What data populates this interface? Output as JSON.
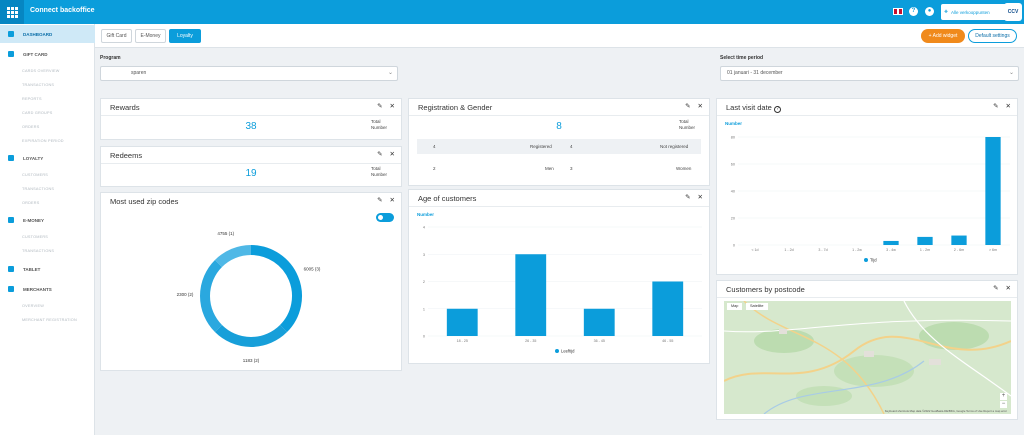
{
  "topbar": {
    "title": "Connect backoffice",
    "store_select": "Alle verkooppunten",
    "logo": "CCV",
    "icons": [
      "apps-icon",
      "uk-flag-icon",
      "help-icon",
      "user-icon",
      "pencil-icon"
    ]
  },
  "sidebar": {
    "items": [
      {
        "label": "Dashboard",
        "icon": "dashboard-icon",
        "active": true
      },
      {
        "label": "Gift card",
        "icon": "gift-card-icon"
      },
      {
        "label": "Cards overview"
      },
      {
        "label": "Transactions"
      },
      {
        "label": "Reports"
      },
      {
        "label": "Card groups"
      },
      {
        "label": "Orders"
      },
      {
        "label": "Expiration period"
      },
      {
        "label": "Loyalty",
        "icon": "loyalty-icon"
      },
      {
        "label": "Customers"
      },
      {
        "label": "Transactions"
      },
      {
        "label": "Orders"
      },
      {
        "label": "E-Money",
        "icon": "emoney-icon"
      },
      {
        "label": "Customers"
      },
      {
        "label": "Transactions"
      },
      {
        "label": "Tablet",
        "icon": "tablet-icon"
      },
      {
        "label": "Merchants",
        "icon": "merchants-icon"
      },
      {
        "label": "Overview"
      },
      {
        "label": "Merchant registration"
      }
    ]
  },
  "tabs": [
    "Gift Card",
    "E-Money",
    "Loyalty"
  ],
  "active_tab": "Loyalty",
  "buttons": {
    "add_widget": "+ Add widget",
    "default_settings": "Default settings"
  },
  "filters": {
    "program_label": "Program",
    "program_value": "sparen",
    "period_label": "Select time period",
    "period_value": "01 januari - 31 december"
  },
  "widgets": {
    "rewards": {
      "title": "Rewards",
      "value": "38",
      "total_label": "Total",
      "number_label": "Number"
    },
    "redeems": {
      "title": "Redeems",
      "value": "19",
      "total_label": "Total",
      "number_label": "Number"
    },
    "registration": {
      "title": "Registration & Gender",
      "value": "8",
      "total_label": "Total",
      "number_label": "Number",
      "registered_count": "4",
      "registered_label": "Registered",
      "not_registered_count": "4",
      "not_registered_label": "Not registered",
      "men_count": "2",
      "men_label": "Men",
      "women_count": "3",
      "women_label": "Women"
    },
    "zip_codes": {
      "title": "Most used zip codes"
    },
    "age": {
      "title": "Age of customers",
      "ylabel": "Number"
    },
    "last_visit": {
      "title": "Last visit date",
      "ylabel": "Number"
    },
    "postcode": {
      "title": "Customers by postcode",
      "map_tab": "Map",
      "sat_tab": "Satellite",
      "footer": "Keyboard shortcuts   Map data ©2022 GeoBasis-DE/BKG, Google   Terms of Use   Report a map error"
    }
  },
  "chart_data": [
    {
      "type": "pie",
      "title": "Most used zip codes",
      "labels": [
        "6005 (3)",
        "1183 (2)",
        "2300 (2)",
        "4755 (1)"
      ],
      "values": [
        3,
        2,
        2,
        1
      ],
      "colors": [
        "#0b9ddb",
        "#179fd9",
        "#2aa8df",
        "#4fb8e6"
      ],
      "style": "donut"
    },
    {
      "type": "bar",
      "title": "Age of customers",
      "ylabel": "Number",
      "categories": [
        "18 - 25",
        "26 - 35",
        "36 - 45",
        "46 - 55"
      ],
      "series": [
        {
          "name": "Leeftijd",
          "values": [
            1,
            3,
            1,
            2
          ]
        }
      ],
      "ylim": [
        0,
        4
      ],
      "yticks": [
        0,
        1,
        2,
        3,
        4
      ],
      "color": "#0b9ddb",
      "legend": "bottom"
    },
    {
      "type": "bar",
      "title": "Last visit date",
      "ylabel": "Number",
      "categories": [
        "< 1d",
        "1 - 2d",
        "3 - 7d",
        "1 - 2w",
        "3 - 4w",
        "1 - 2m",
        "2 - 6m",
        "> 6m"
      ],
      "series": [
        {
          "name": "Tijd",
          "values": [
            0,
            0,
            0,
            0,
            3,
            6,
            7,
            80
          ]
        }
      ],
      "ylim": [
        0,
        80
      ],
      "yticks": [
        0,
        20,
        40,
        60,
        80
      ],
      "color": "#0b9ddb",
      "legend": "bottom"
    }
  ]
}
